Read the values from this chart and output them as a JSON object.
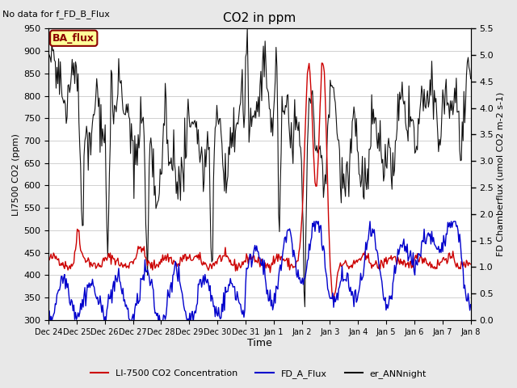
{
  "title": "CO2 in ppm",
  "no_data_text": "No data for f_FD_B_Flux",
  "ba_flux_label": "BA_flux",
  "xlabel": "Time",
  "ylabel_left": "LI7500 CO2 (ppm)",
  "ylabel_right": "FD Chamberflux (umol CO2 m-2 s-1)",
  "ylim_left": [
    300,
    950
  ],
  "ylim_right": [
    0.0,
    5.5
  ],
  "yticks_left": [
    300,
    350,
    400,
    450,
    500,
    550,
    600,
    650,
    700,
    750,
    800,
    850,
    900,
    950
  ],
  "yticks_right": [
    0.0,
    0.5,
    1.0,
    1.5,
    2.0,
    2.5,
    3.0,
    3.5,
    4.0,
    4.5,
    5.0,
    5.5
  ],
  "xtick_labels": [
    "Dec 24",
    "Dec 25",
    "Dec 26",
    "Dec 27",
    "Dec 28",
    "Dec 29",
    "Dec 30",
    "Dec 31",
    "Jan 1",
    "Jan 2",
    "Jan 3",
    "Jan 4",
    "Jan 5",
    "Jan 6",
    "Jan 7",
    "Jan 8"
  ],
  "line_red_color": "#cc0000",
  "line_blue_color": "#0000cc",
  "line_black_color": "#111111",
  "legend_entries": [
    "LI-7500 CO2 Concentration",
    "FD_A_Flux",
    "er_ANNnight"
  ],
  "bg_color": "#e8e8e8",
  "plot_bg_color": "#ffffff",
  "grid_color": "#d0d0d0",
  "n_points": 500
}
